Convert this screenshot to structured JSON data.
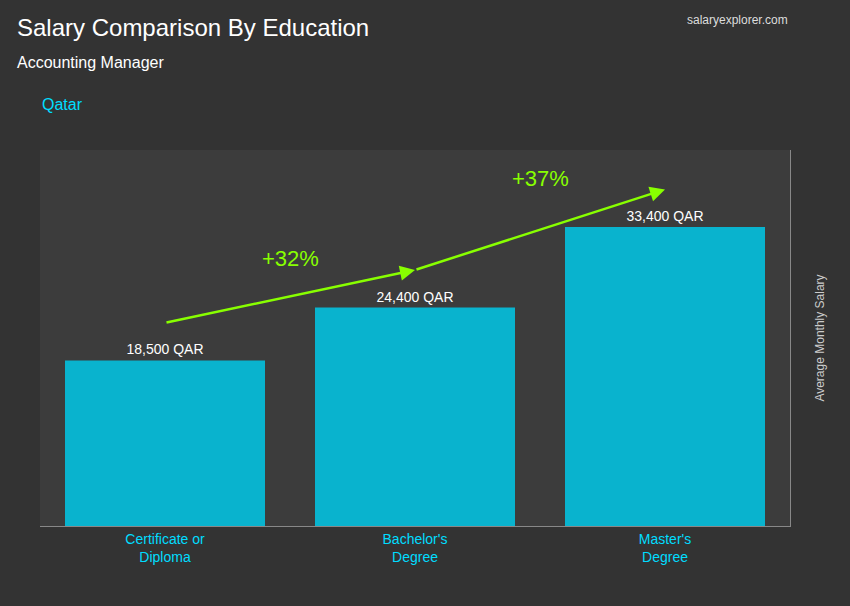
{
  "chart_data": {
    "type": "bar",
    "title": "Salary Comparison By Education",
    "subtitle": "Accounting Manager",
    "ylabel": "Average Monthly Salary",
    "categories": [
      "Certificate or\nDiploma",
      "Bachelor's\nDegree",
      "Master's\nDegree"
    ],
    "values": [
      18500,
      24400,
      33400
    ],
    "value_labels": [
      "18,500 QAR",
      "24,400 QAR",
      "33,400 QAR"
    ],
    "data_labels": true,
    "color": "#00C8E8",
    "ylim": [
      0,
      42000
    ],
    "tick_labels": "x",
    "grid": false,
    "annotations": [
      {
        "text": "Qatar"
      },
      {
        "text": "salaryexplorer.com"
      },
      {
        "text": "+32%",
        "from": "Certificate or\nDiploma",
        "to": "Bachelor's\nDegree",
        "color": "#88FF00"
      },
      {
        "text": "+37%",
        "from": "Bachelor's\nDegree",
        "to": "Master's\nDegree",
        "color": "#88FF00"
      }
    ]
  }
}
